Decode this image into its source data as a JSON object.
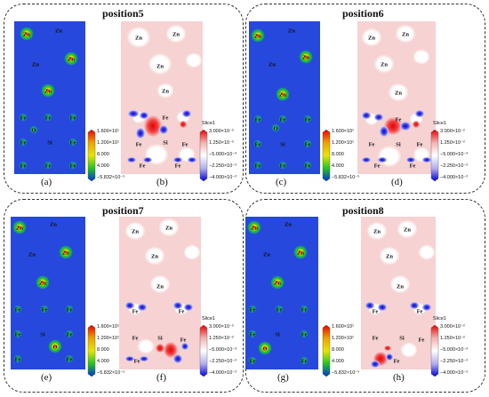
{
  "panels": [
    {
      "title": "position5",
      "left_label": "(a)",
      "right_label": "(b)"
    },
    {
      "title": "position6",
      "left_label": "(c)",
      "right_label": "(d)"
    },
    {
      "title": "position7",
      "left_label": "(e)",
      "right_label": "(f)"
    },
    {
      "title": "position8",
      "left_label": "(g)",
      "right_label": "(h)"
    }
  ],
  "left_colorbar": {
    "ticks": [
      "1.600×10¹",
      "1.200×10¹",
      "8.000",
      "4.000",
      "−5.832×10⁻⁵"
    ],
    "colors": [
      "#e60000",
      "#f0a000",
      "#e6e600",
      "#22c422",
      "#0030e0"
    ]
  },
  "right_colorbar": {
    "title": "Slice1",
    "ticks": [
      "3.000×10⁻²",
      "1.250×10⁻²",
      "−5.000×10⁻³",
      "−2.250×10⁻²",
      "−4.000×10⁻²"
    ],
    "colors": [
      "#e60000",
      "#f4b0b0",
      "#ffffff",
      "#b0b0f0",
      "#0000e0"
    ]
  },
  "atom_labels": {
    "zn": "Zn",
    "fe": "Fe",
    "si": "Si",
    "o": "O"
  }
}
